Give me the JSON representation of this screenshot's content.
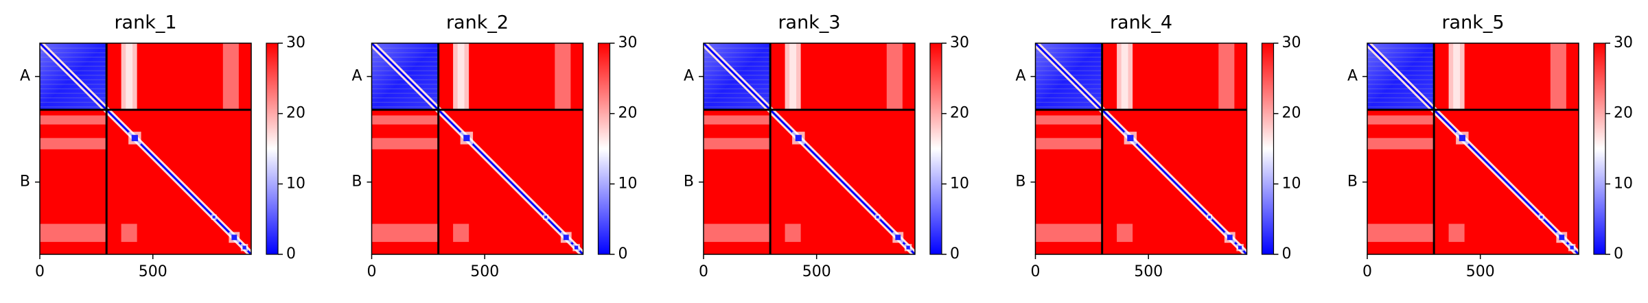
{
  "chart_data": [
    {
      "type": "heatmap",
      "title": "rank_1",
      "xlim": [
        0,
        935
      ],
      "ylim": [
        935,
        0
      ],
      "xticks": [
        0,
        500
      ],
      "yticks": [
        {
          "value": 147.5,
          "label": "A"
        },
        {
          "value": 615,
          "label": "B"
        }
      ],
      "chain_breaks": [
        295
      ],
      "colormap": "bwr",
      "clim": [
        0,
        30
      ],
      "cticks": [
        0,
        10,
        20,
        30
      ]
    },
    {
      "type": "heatmap",
      "title": "rank_2",
      "xlim": [
        0,
        935
      ],
      "ylim": [
        935,
        0
      ],
      "xticks": [
        0,
        500
      ],
      "yticks": [
        {
          "value": 147.5,
          "label": "A"
        },
        {
          "value": 615,
          "label": "B"
        }
      ],
      "chain_breaks": [
        295
      ],
      "colormap": "bwr",
      "clim": [
        0,
        30
      ],
      "cticks": [
        0,
        10,
        20,
        30
      ]
    },
    {
      "type": "heatmap",
      "title": "rank_3",
      "xlim": [
        0,
        935
      ],
      "ylim": [
        935,
        0
      ],
      "xticks": [
        0,
        500
      ],
      "yticks": [
        {
          "value": 147.5,
          "label": "A"
        },
        {
          "value": 615,
          "label": "B"
        }
      ],
      "chain_breaks": [
        295
      ],
      "colormap": "bwr",
      "clim": [
        0,
        30
      ],
      "cticks": [
        0,
        10,
        20,
        30
      ]
    },
    {
      "type": "heatmap",
      "title": "rank_4",
      "xlim": [
        0,
        935
      ],
      "ylim": [
        935,
        0
      ],
      "xticks": [
        0,
        500
      ],
      "yticks": [
        {
          "value": 147.5,
          "label": "A"
        },
        {
          "value": 615,
          "label": "B"
        }
      ],
      "chain_breaks": [
        295
      ],
      "colormap": "bwr",
      "clim": [
        0,
        30
      ],
      "cticks": [
        0,
        10,
        20,
        30
      ]
    },
    {
      "type": "heatmap",
      "title": "rank_5",
      "xlim": [
        0,
        935
      ],
      "ylim": [
        935,
        0
      ],
      "xticks": [
        0,
        500
      ],
      "yticks": [
        {
          "value": 147.5,
          "label": "A"
        },
        {
          "value": 615,
          "label": "B"
        }
      ],
      "chain_breaks": [
        295
      ],
      "colormap": "bwr",
      "clim": [
        0,
        30
      ],
      "cticks": [
        0,
        10,
        20,
        30
      ]
    }
  ]
}
